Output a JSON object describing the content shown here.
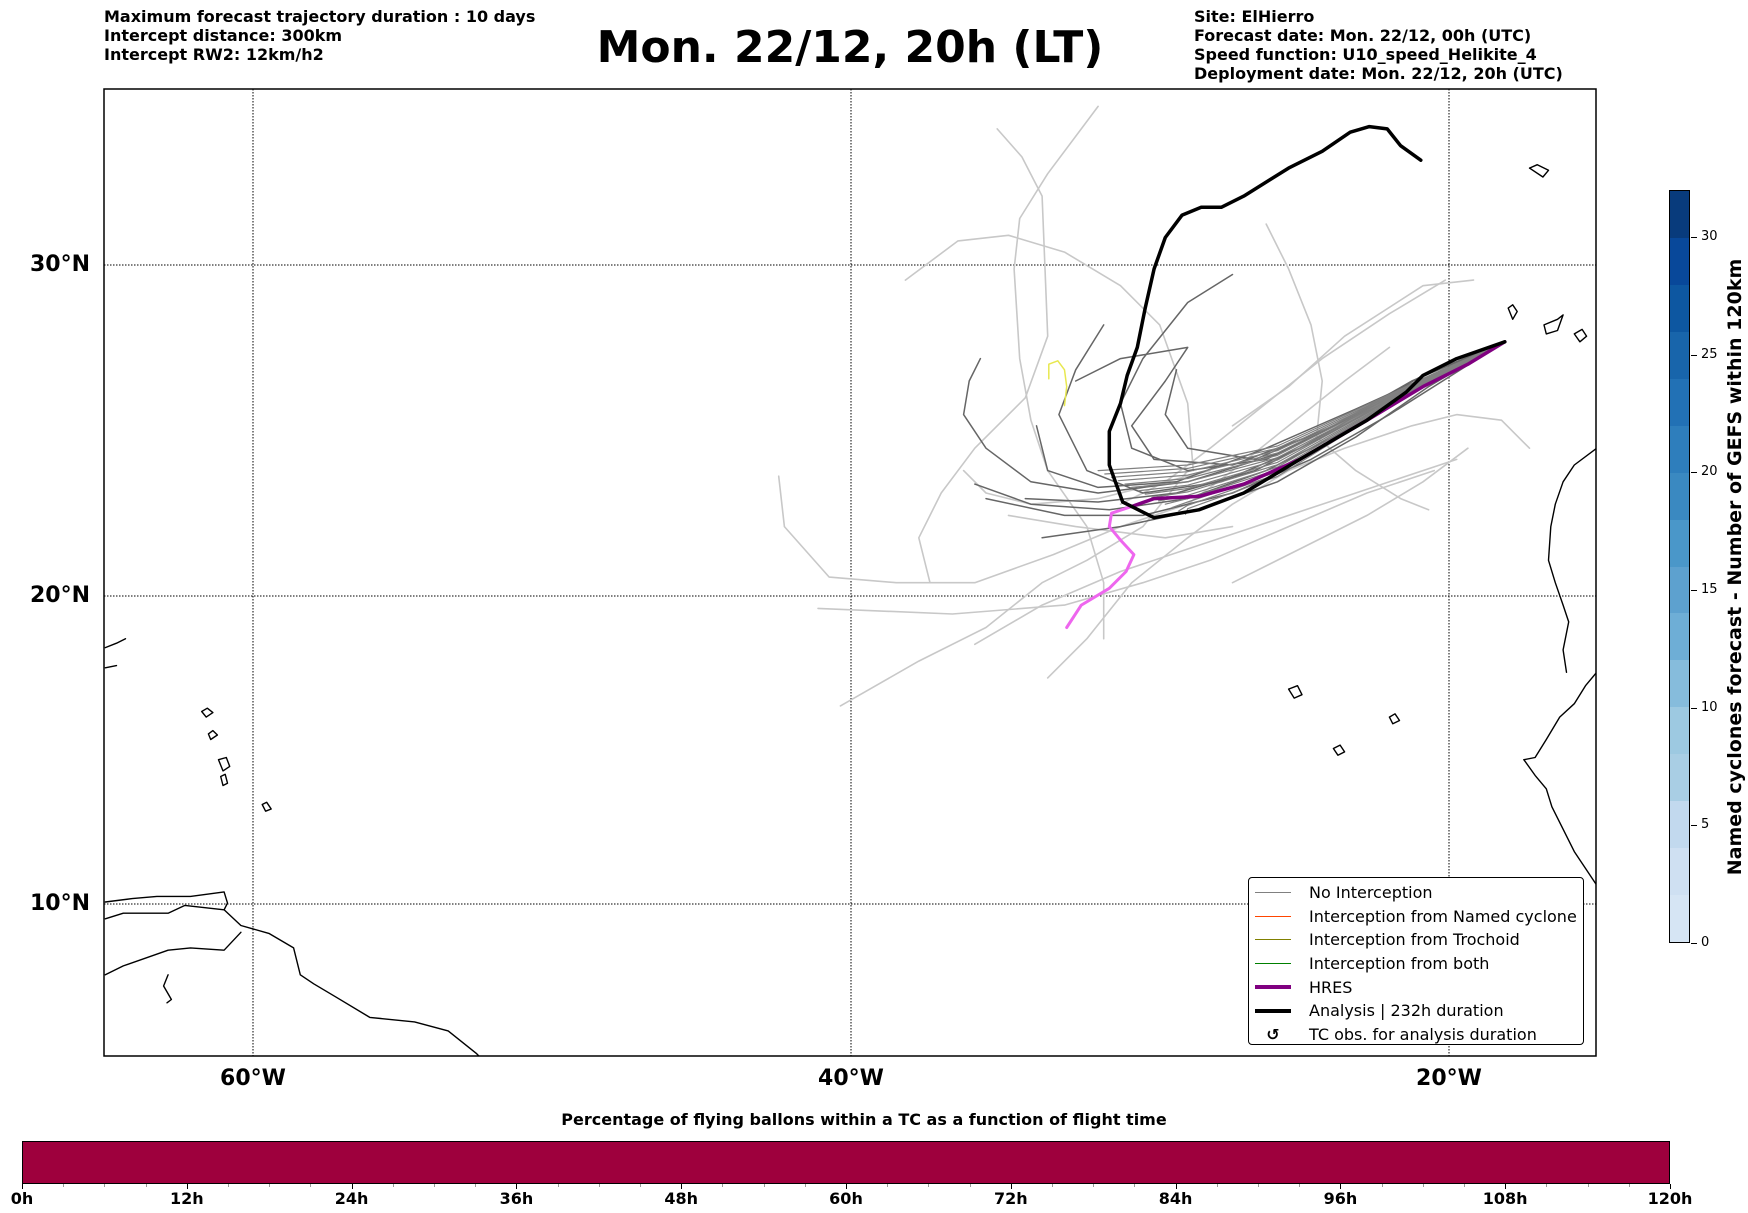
{
  "header": {
    "left_lines": [
      "Maximum forecast trajectory duration : 10 days",
      "Intercept distance: 300km",
      "Intercept RW2: 12km/h2"
    ],
    "title": "Mon. 22/12, 20h (LT)",
    "right_lines": [
      "Site: ElHierro",
      "Forecast date: Mon. 22/12, 00h (UTC)",
      "Speed function: U10_speed_Helikite_4",
      "Deployment date: Mon. 22/12, 20h (UTC)"
    ]
  },
  "map": {
    "lat_labels": [
      "30°N",
      "20°N",
      "10°N"
    ],
    "lon_labels": [
      "60°W",
      "40°W",
      "20°W"
    ],
    "colors": {
      "no_interception": "#808080",
      "ensemble_light": "#c8c8c8",
      "ensemble_dark": "#666666",
      "hres": "#800080",
      "hres_alt": "#ee66ee",
      "analysis": "#000000",
      "yellow_track": "#e8e850"
    }
  },
  "legend": {
    "items": [
      {
        "label": "No Interception",
        "color": "#808080",
        "style": "thin"
      },
      {
        "label": "Interception from Named cyclone",
        "color": "#ff4500",
        "style": "thin"
      },
      {
        "label": "Interception from Trochoid",
        "color": "#808000",
        "style": "thin"
      },
      {
        "label": "Interception from both",
        "color": "#008000",
        "style": "thin"
      },
      {
        "label": "HRES",
        "color": "#800080",
        "style": "thick"
      },
      {
        "label": "Analysis | 232h duration",
        "color": "#000000",
        "style": "thick"
      },
      {
        "label": "TC obs. for analysis duration",
        "color": "#000000",
        "style": "marker",
        "icon": "↺"
      }
    ]
  },
  "colorbar": {
    "title": "Named cyclones forecast - Number of GEFS within 120km",
    "ticks": [
      "0",
      "5",
      "10",
      "15",
      "20",
      "25",
      "30"
    ],
    "range": [
      0,
      32
    ],
    "colors": [
      "#d6e5f4",
      "#cfe0f2",
      "#c2d9ee",
      "#a9cee4",
      "#9dc9e1",
      "#86bcdc",
      "#6eaed6",
      "#5da1cf",
      "#4a97c9",
      "#3a89c1",
      "#2e7ebc",
      "#2271b5",
      "#1865ab",
      "#0d57a1",
      "#08489a",
      "#083b7c"
    ]
  },
  "time_bar": {
    "title": "Percentage of flying ballons within a TC as a function of flight time",
    "ticks": [
      "0h",
      "12h",
      "24h",
      "36h",
      "48h",
      "60h",
      "72h",
      "84h",
      "96h",
      "108h",
      "120h"
    ],
    "fill_color": "#9e003d",
    "fill_fraction": 1.0
  }
}
